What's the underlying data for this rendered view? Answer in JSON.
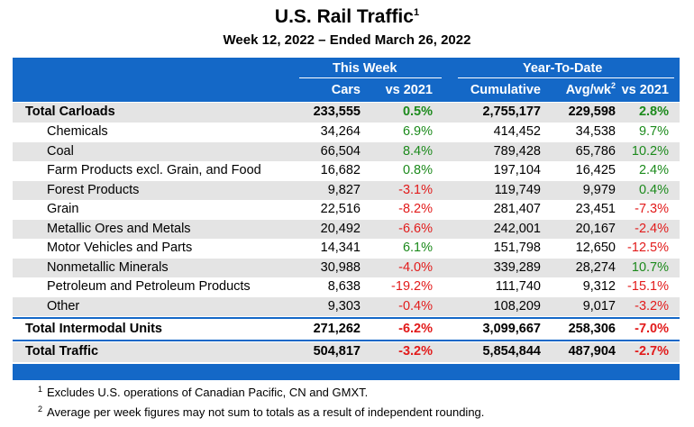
{
  "title": "U.S. Rail Traffic",
  "title_note": "1",
  "subtitle": "Week 12, 2022 – Ended March 26, 2022",
  "header": {
    "this_week": "This Week",
    "ytd": "Year-To-Date",
    "cars": "Cars",
    "vs2021_week": "vs 2021",
    "cumulative": "Cumulative",
    "avgwk": "Avg/wk",
    "avgwk_note": "2",
    "vs2021_ytd": "vs 2021"
  },
  "rows": [
    {
      "label": "Total Carloads",
      "cars": "233,555",
      "vs_week": "0.5%",
      "cumulative": "2,755,177",
      "avg": "229,598",
      "vs_ytd": "2.8%",
      "indent": false,
      "bold": true
    },
    {
      "label": "Chemicals",
      "cars": "34,264",
      "vs_week": "6.9%",
      "cumulative": "414,452",
      "avg": "34,538",
      "vs_ytd": "9.7%",
      "indent": true,
      "bold": false
    },
    {
      "label": "Coal",
      "cars": "66,504",
      "vs_week": "8.4%",
      "cumulative": "789,428",
      "avg": "65,786",
      "vs_ytd": "10.2%",
      "indent": true,
      "bold": false
    },
    {
      "label": "Farm Products excl. Grain, and Food",
      "cars": "16,682",
      "vs_week": "0.8%",
      "cumulative": "197,104",
      "avg": "16,425",
      "vs_ytd": "2.4%",
      "indent": true,
      "bold": false
    },
    {
      "label": "Forest Products",
      "cars": "9,827",
      "vs_week": "-3.1%",
      "cumulative": "119,749",
      "avg": "9,979",
      "vs_ytd": "0.4%",
      "indent": true,
      "bold": false
    },
    {
      "label": "Grain",
      "cars": "22,516",
      "vs_week": "-8.2%",
      "cumulative": "281,407",
      "avg": "23,451",
      "vs_ytd": "-7.3%",
      "indent": true,
      "bold": false
    },
    {
      "label": "Metallic Ores and Metals",
      "cars": "20,492",
      "vs_week": "-6.6%",
      "cumulative": "242,001",
      "avg": "20,167",
      "vs_ytd": "-2.4%",
      "indent": true,
      "bold": false
    },
    {
      "label": "Motor Vehicles and Parts",
      "cars": "14,341",
      "vs_week": "6.1%",
      "cumulative": "151,798",
      "avg": "12,650",
      "vs_ytd": "-12.5%",
      "indent": true,
      "bold": false
    },
    {
      "label": "Nonmetallic Minerals",
      "cars": "30,988",
      "vs_week": "-4.0%",
      "cumulative": "339,289",
      "avg": "28,274",
      "vs_ytd": "10.7%",
      "indent": true,
      "bold": false
    },
    {
      "label": "Petroleum and Petroleum Products",
      "cars": "8,638",
      "vs_week": "-19.2%",
      "cumulative": "111,740",
      "avg": "9,312",
      "vs_ytd": "-15.1%",
      "indent": true,
      "bold": false
    },
    {
      "label": "Other",
      "cars": "9,303",
      "vs_week": "-0.4%",
      "cumulative": "108,209",
      "avg": "9,017",
      "vs_ytd": "-3.2%",
      "indent": true,
      "bold": false
    },
    {
      "label": "Total Intermodal Units",
      "cars": "271,262",
      "vs_week": "-6.2%",
      "cumulative": "3,099,667",
      "avg": "258,306",
      "vs_ytd": "-7.0%",
      "indent": false,
      "bold": true
    },
    {
      "label": "Total Traffic",
      "cars": "504,817",
      "vs_week": "-3.2%",
      "cumulative": "5,854,844",
      "avg": "487,904",
      "vs_ytd": "-2.7%",
      "indent": false,
      "bold": true
    }
  ],
  "footnotes": [
    {
      "mark": "1",
      "text": "Excludes U.S. operations of Canadian Pacific, CN and GMXT."
    },
    {
      "mark": "2",
      "text": "Average per week figures may not sum to totals as a result of independent rounding."
    }
  ],
  "colors": {
    "header_blue": "#1468c7",
    "positive": "#1c8a1c",
    "negative": "#e21b1b",
    "shade": "#e4e4e4"
  }
}
